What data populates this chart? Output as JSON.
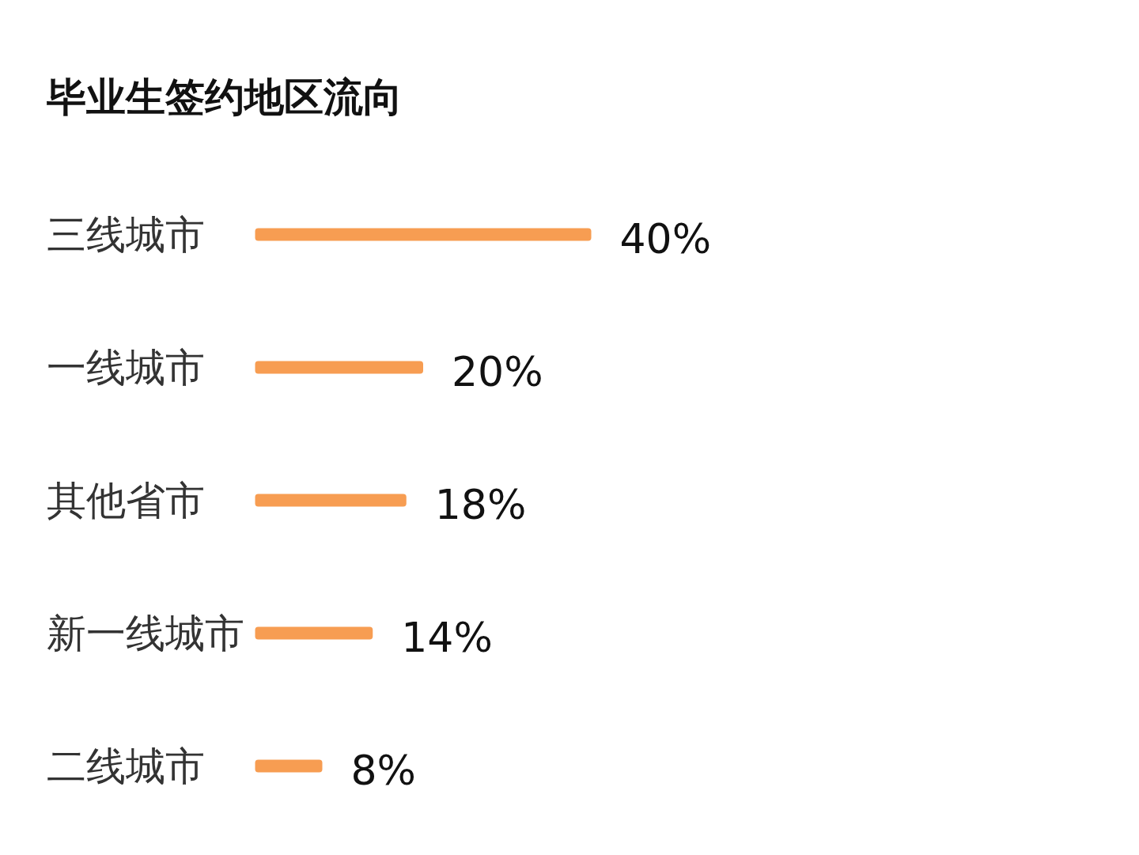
{
  "chart_data": {
    "type": "bar",
    "orientation": "horizontal",
    "title": "毕业生签约地区流向",
    "categories": [
      "三线城市",
      "一线城市",
      "其他省市",
      "新一线城市",
      "二线城市"
    ],
    "values": [
      40,
      20,
      18,
      14,
      8
    ],
    "color": "#f79d52",
    "value_labels": [
      "40%",
      "20%",
      "18%",
      "14%",
      "8%"
    ]
  }
}
